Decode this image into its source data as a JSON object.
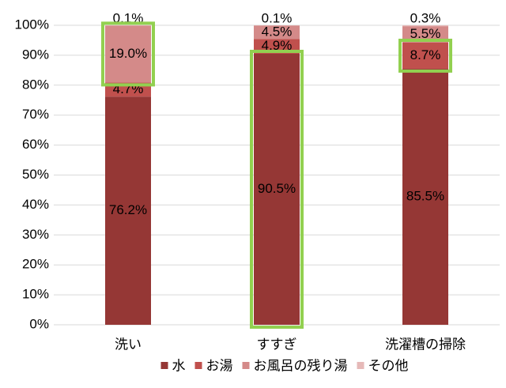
{
  "chart_data": {
    "type": "stacked-bar",
    "categories": [
      "洗い",
      "すすぎ",
      "洗濯槽の掃除"
    ],
    "series": [
      {
        "name": "水",
        "color": "#953735",
        "values": [
          76.2,
          90.5,
          85.5
        ],
        "value_labels": [
          "76.2%",
          "90.5%",
          "85.5%"
        ]
      },
      {
        "name": "お湯",
        "color": "#c0504d",
        "values": [
          4.7,
          4.9,
          8.7
        ],
        "value_labels": [
          "4.7%",
          "4.9%",
          "8.7%"
        ]
      },
      {
        "name": "お風呂の残り湯",
        "color": "#d48a89",
        "values": [
          19.0,
          4.5,
          5.5
        ],
        "value_labels": [
          "19.0%",
          "4.5%",
          "5.5%"
        ]
      },
      {
        "name": "その他",
        "color": "#e6b9b8",
        "values": [
          0.1,
          0.1,
          0.3
        ],
        "value_labels": [
          "0.1%",
          "0.1%",
          "0.3%"
        ]
      }
    ],
    "ylim": [
      0,
      100
    ],
    "yticks": [
      {
        "value": 0,
        "label": "0%"
      },
      {
        "value": 10,
        "label": "10%"
      },
      {
        "value": 20,
        "label": "20%"
      },
      {
        "value": 30,
        "label": "30%"
      },
      {
        "value": 40,
        "label": "40%"
      },
      {
        "value": 50,
        "label": "50%"
      },
      {
        "value": 60,
        "label": "60%"
      },
      {
        "value": 70,
        "label": "70%"
      },
      {
        "value": 80,
        "label": "80%"
      },
      {
        "value": 90,
        "label": "90%"
      },
      {
        "value": 100,
        "label": "100%"
      }
    ],
    "grid": true,
    "legend": "bottom"
  }
}
